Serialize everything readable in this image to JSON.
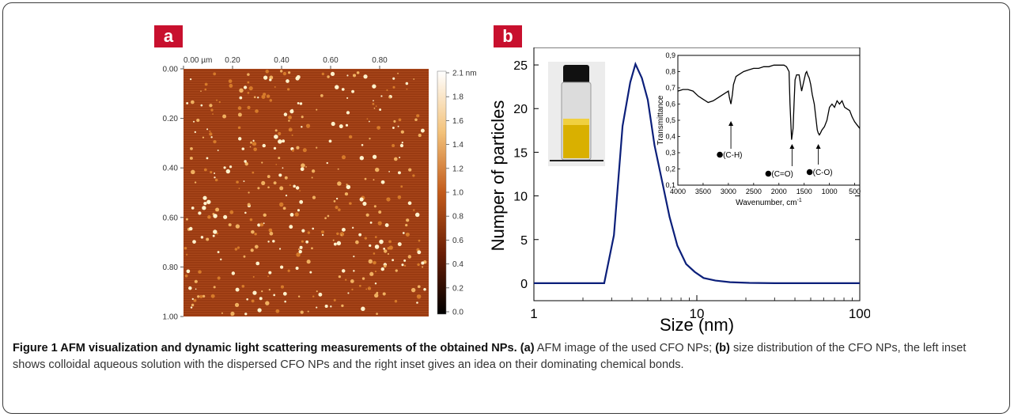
{
  "figure": {
    "panel_a_label": "a",
    "panel_b_label": "b",
    "afm": {
      "x_ticks": [
        "0.00 µm",
        "0.20",
        "0.40",
        "0.60",
        "0.80"
      ],
      "y_ticks": [
        "0.00",
        "0.20",
        "0.40",
        "0.60",
        "0.80",
        "1.00"
      ],
      "scale_ticks": [
        "2.1 nm",
        "1.8",
        "1.6",
        "1.4",
        "1.2",
        "1.0",
        "0.8",
        "0.6",
        "0.4",
        "0.2",
        "0.0"
      ],
      "colors": {
        "background": "#9a3b12",
        "particle": "#fff2cc",
        "scale_top": "#ffffff",
        "scale_mid": "#c25a1a",
        "scale_bottom": "#000000"
      }
    },
    "caption": {
      "title": "Figure 1 AFM visualization and dynamic light scattering measurements of the obtained NPs.",
      "a_tag": "(a)",
      "a_text": " AFM image of the used CFO NPs; ",
      "b_tag": "(b)",
      "b_text": " size distribution of the CFO NPs, the left inset shows colloidal aqueous solution with the dispersed CFO NPs and the right inset gives an idea on their dominating chemical bonds."
    }
  },
  "chart_data": [
    {
      "type": "line",
      "xlabel": "Size (nm)",
      "ylabel": "Numper of particles",
      "x_scale": "log",
      "xlim": [
        1,
        100
      ],
      "ylim": [
        -2,
        27
      ],
      "x_ticks": [
        1,
        10,
        100
      ],
      "y_ticks": [
        0,
        5,
        10,
        15,
        20,
        25
      ],
      "color": "#0b1f7a",
      "series": [
        {
          "x": [
            1,
            2.7,
            3.1,
            3.5,
            3.9,
            4.2,
            4.6,
            5.0,
            5.5,
            6.1,
            6.8,
            7.6,
            8.6,
            9.7,
            11,
            13,
            16,
            21,
            30,
            50,
            100
          ],
          "values": [
            0,
            0,
            5.5,
            18.0,
            23.0,
            25.1,
            23.5,
            21.0,
            15.8,
            11.8,
            7.6,
            4.3,
            2.2,
            1.3,
            0.6,
            0.3,
            0.12,
            0.04,
            0,
            0,
            0
          ]
        }
      ]
    },
    {
      "type": "line",
      "xlabel": "Wavenumber, cm",
      "xlabel_sup": "-1",
      "ylabel": "Transmittance",
      "xlim": [
        4000,
        400
      ],
      "ylim": [
        0.1,
        0.9
      ],
      "x_ticks": [
        4000,
        3500,
        3000,
        2500,
        2000,
        1500,
        1000,
        500
      ],
      "y_ticks": [
        0.1,
        0.2,
        0.3,
        0.4,
        0.5,
        0.6,
        0.7,
        0.8,
        0.9
      ],
      "y_tick_labels": [
        "0,1",
        "0,2",
        "0,3",
        "0,4",
        "0,5",
        "0,6",
        "0,7",
        "0,8",
        "0,9"
      ],
      "series": [
        {
          "x": [
            4000,
            3900,
            3800,
            3700,
            3600,
            3500,
            3400,
            3300,
            3200,
            3100,
            3000,
            2980,
            2950,
            2920,
            2900,
            2850,
            2800,
            2700,
            2600,
            2500,
            2400,
            2300,
            2200,
            2100,
            2000,
            1900,
            1850,
            1800,
            1780,
            1750,
            1720,
            1700,
            1680,
            1650,
            1600,
            1550,
            1500,
            1470,
            1450,
            1430,
            1400,
            1370,
            1340,
            1300,
            1270,
            1240,
            1220,
            1200,
            1180,
            1150,
            1100,
            1050,
            1000,
            950,
            900,
            850,
            800,
            750,
            700,
            650,
            600,
            550,
            500,
            450,
            400
          ],
          "values": [
            0.68,
            0.69,
            0.69,
            0.68,
            0.65,
            0.63,
            0.61,
            0.62,
            0.64,
            0.66,
            0.68,
            0.64,
            0.6,
            0.66,
            0.72,
            0.77,
            0.78,
            0.8,
            0.81,
            0.82,
            0.82,
            0.83,
            0.83,
            0.84,
            0.84,
            0.84,
            0.83,
            0.8,
            0.6,
            0.38,
            0.45,
            0.6,
            0.75,
            0.78,
            0.78,
            0.68,
            0.75,
            0.79,
            0.8,
            0.78,
            0.76,
            0.72,
            0.66,
            0.6,
            0.52,
            0.44,
            0.42,
            0.41,
            0.42,
            0.44,
            0.46,
            0.5,
            0.58,
            0.6,
            0.58,
            0.62,
            0.6,
            0.62,
            0.58,
            0.57,
            0.56,
            0.52,
            0.49,
            0.47,
            0.45
          ]
        }
      ],
      "annotations": [
        {
          "label": "(C-H)",
          "x": 2950
        },
        {
          "label": "(C=O)",
          "x": 1740
        },
        {
          "label": "(C-O)",
          "x": 1220
        }
      ]
    }
  ]
}
